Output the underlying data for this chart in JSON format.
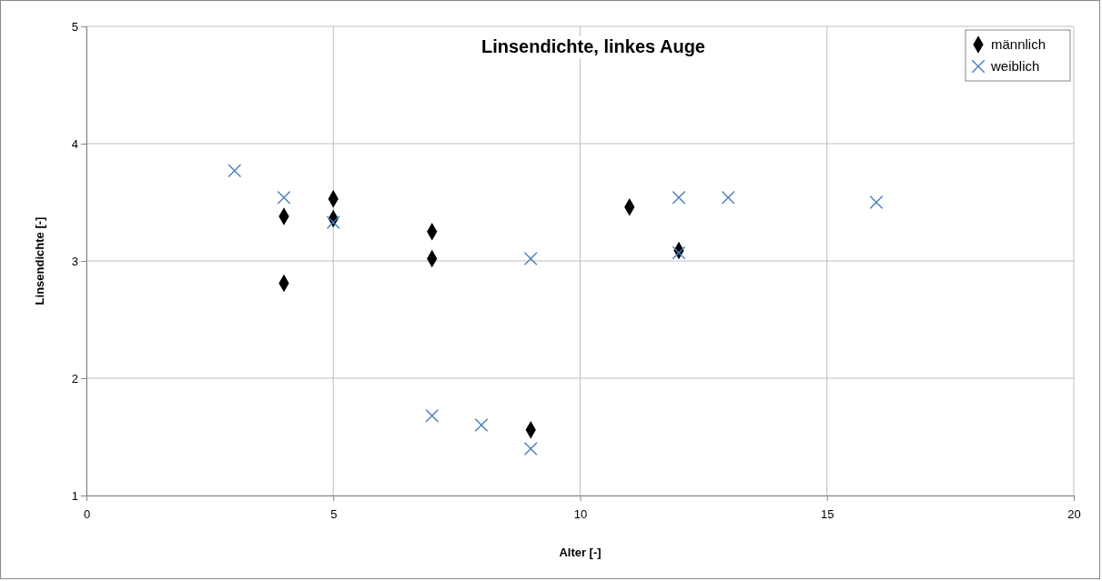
{
  "chart_data": {
    "type": "scatter",
    "title": "Linsendichte, linkes Auge",
    "xlabel": "Alter [-]",
    "ylabel": "Linsendichte [-]",
    "xlim": [
      0,
      20
    ],
    "xticks": [
      0,
      5,
      10,
      15,
      20
    ],
    "ylim": [
      1,
      5
    ],
    "yticks": [
      1,
      2,
      3,
      4,
      5
    ],
    "grid": true,
    "legend": "top right",
    "series": [
      {
        "name": "männlich",
        "color": "#000000",
        "marker": "diamond",
        "x": [
          4,
          4,
          5,
          5,
          7,
          7,
          9,
          11,
          12
        ],
        "values": [
          3.38,
          2.81,
          3.53,
          3.36,
          3.25,
          3.02,
          1.56,
          3.46,
          3.09
        ]
      },
      {
        "name": "weiblich",
        "color": "#4a7ebb",
        "marker": "cross",
        "x": [
          3,
          4,
          5,
          7,
          8,
          9,
          9,
          12,
          12,
          13,
          16
        ],
        "values": [
          3.77,
          3.54,
          3.33,
          1.68,
          1.6,
          3.02,
          1.4,
          3.54,
          3.07,
          3.54,
          3.5
        ]
      }
    ]
  }
}
